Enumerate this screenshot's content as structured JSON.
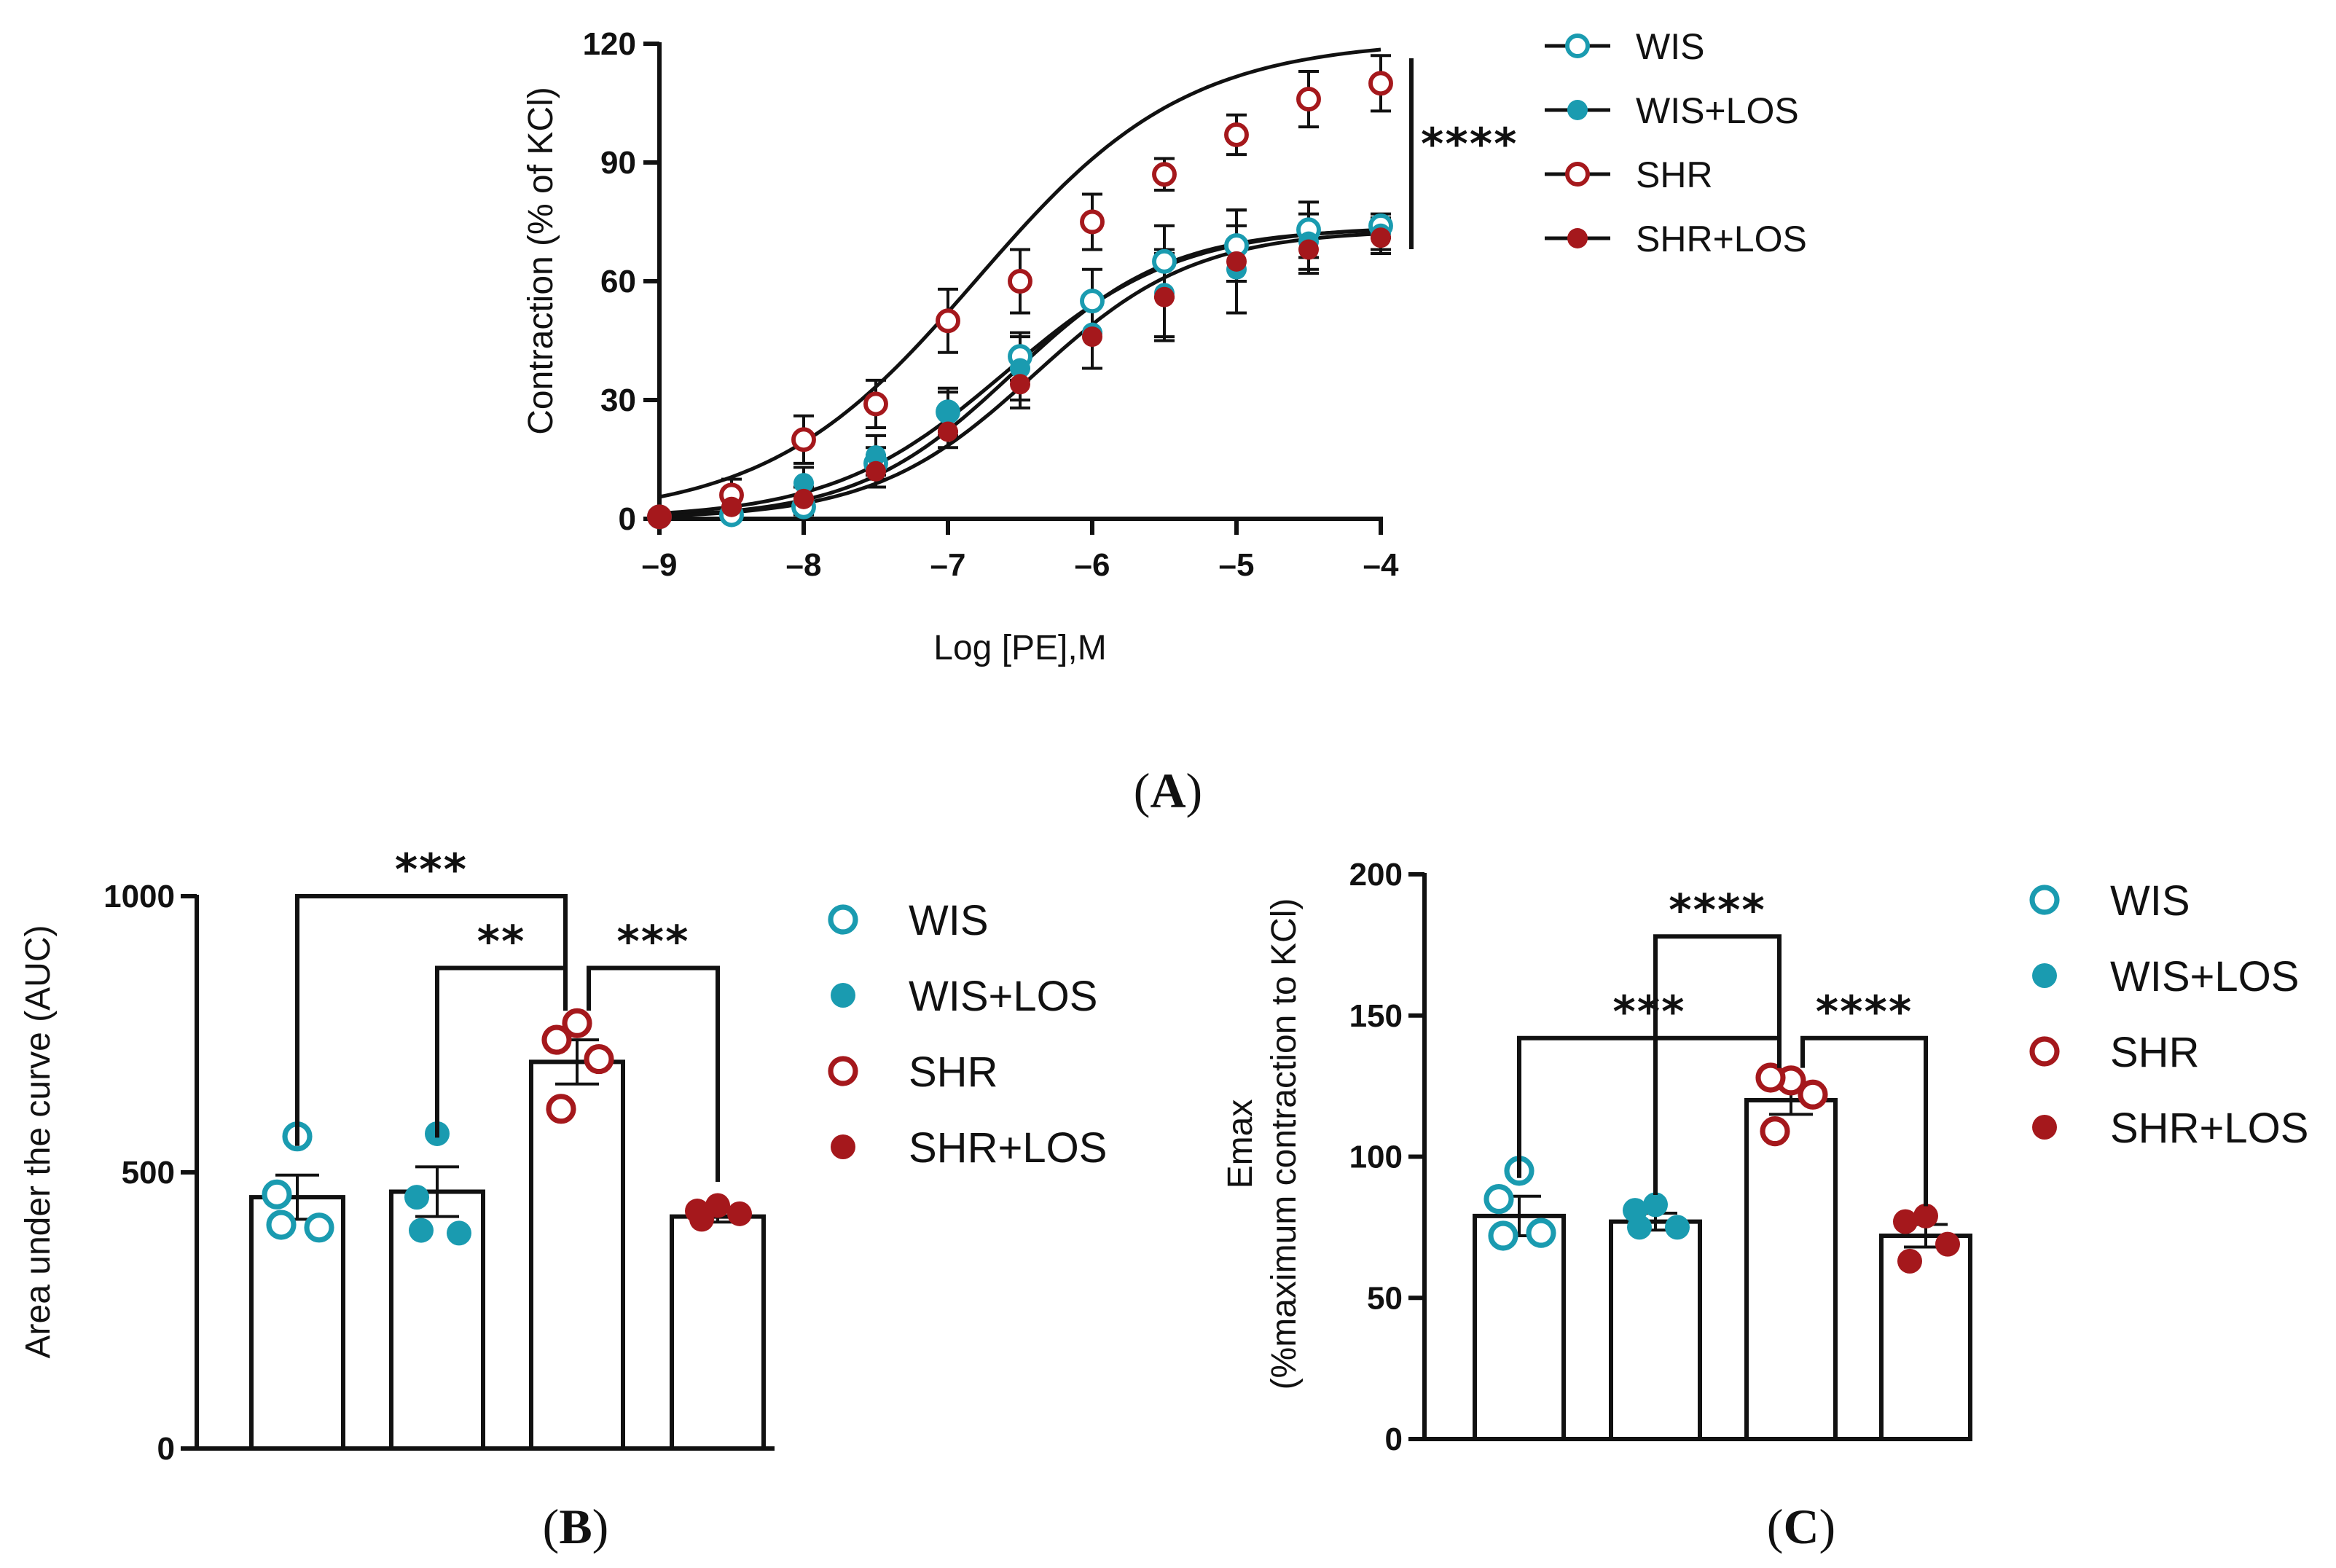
{
  "colors": {
    "wis": "#1a9bb0",
    "shr": "#a5181c",
    "axis": "#111111"
  },
  "panel_labels": {
    "a": "A",
    "b": "B",
    "c": "C"
  },
  "chart_data": [
    {
      "id": "A",
      "type": "line",
      "xlabel": "Log [PE],M",
      "ylabel": "Contraction (% of KCl)",
      "xlim": [
        -9,
        -4
      ],
      "ylim": [
        0,
        120
      ],
      "xticks": [
        -9,
        -8,
        -7,
        -6,
        -5,
        -4
      ],
      "xtick_labels": [
        "–9",
        "–8",
        "–7",
        "–6",
        "–5",
        "–4"
      ],
      "yticks": [
        0,
        30,
        60,
        90,
        120
      ],
      "x": [
        -9,
        -8.5,
        -8,
        -7.5,
        -7,
        -6.5,
        -6,
        -5.5,
        -5,
        -4.5,
        -4
      ],
      "series": [
        {
          "name": "WIS",
          "style": "open",
          "color": "#1a9bb0",
          "values": [
            0.5,
            1,
            3,
            14,
            27,
            41,
            55,
            65,
            69,
            73,
            74
          ],
          "errors": [
            0.5,
            1,
            2,
            4,
            5,
            6,
            8,
            9,
            9,
            7,
            3
          ],
          "fit": {
            "bottom": 0,
            "top": 73.5,
            "logec50": -6.55,
            "hill": 0.8
          }
        },
        {
          "name": "WIS+LOS",
          "style": "filled",
          "color": "#1a9bb0",
          "values": [
            0.5,
            5,
            9,
            16,
            27,
            38,
            47,
            57,
            63,
            70,
            72
          ],
          "errors": [
            0.5,
            2,
            4,
            5,
            6,
            8,
            9,
            11,
            11,
            7,
            4
          ],
          "fit": {
            "bottom": 0,
            "top": 74,
            "logec50": -6.6,
            "hill": 0.72
          }
        },
        {
          "name": "SHR",
          "style": "open",
          "color": "#a5181c",
          "values": [
            0.5,
            6,
            20,
            29,
            50,
            60,
            75,
            87,
            97,
            106,
            110
          ],
          "errors": [
            0.5,
            4,
            6,
            6,
            8,
            8,
            7,
            4,
            5,
            7,
            7
          ],
          "fit": {
            "bottom": 0,
            "top": 121,
            "logec50": -6.8,
            "hill": 0.6
          }
        },
        {
          "name": "SHR+LOS",
          "style": "filled",
          "color": "#a5181c",
          "values": [
            0.5,
            3,
            5,
            12,
            22,
            34,
            46,
            56,
            65,
            68,
            71
          ],
          "errors": [
            0.5,
            2,
            3,
            4,
            4,
            6,
            8,
            11,
            13,
            6,
            4
          ],
          "fit": {
            "bottom": 0,
            "top": 73,
            "logec50": -6.4,
            "hill": 0.78
          }
        }
      ],
      "legend": [
        "WIS",
        "WIS+LOS",
        "SHR",
        "SHR+LOS"
      ],
      "legend_position": "right",
      "annotations": [
        {
          "text": "****",
          "between": "SHR vs others at max"
        }
      ]
    },
    {
      "id": "B",
      "type": "bar",
      "ylabel": "Area under the curve (AUC)",
      "ylim": [
        0,
        1000
      ],
      "yticks": [
        0,
        500,
        1000
      ],
      "categories": [
        "WIS",
        "WIS+LOS",
        "SHR",
        "SHR+LOS"
      ],
      "values": [
        455,
        465,
        700,
        420
      ],
      "errors": [
        40,
        45,
        40,
        10
      ],
      "points": [
        [
          565,
          460,
          400,
          405
        ],
        [
          570,
          455,
          390,
          395
        ],
        [
          770,
          740,
          705,
          615
        ],
        [
          440,
          430,
          425,
          415
        ]
      ],
      "legend": [
        "WIS",
        "WIS+LOS",
        "SHR",
        "SHR+LOS"
      ],
      "legend_position": "right",
      "annotations": [
        {
          "text": "***",
          "from": 0,
          "to": 2,
          "level": 1000
        },
        {
          "text": "**",
          "from": 1,
          "to": 2,
          "level": 870
        },
        {
          "text": "***",
          "from": 2,
          "to": 3,
          "level": 870
        }
      ]
    },
    {
      "id": "C",
      "type": "bar",
      "ylabel_line1": "Emax",
      "ylabel_line2": "(%maximum contraction to KCl)",
      "ylim": [
        0,
        200
      ],
      "yticks": [
        0,
        50,
        100,
        150,
        200
      ],
      "categories": [
        "WIS",
        "WIS+LOS",
        "SHR",
        "SHR+LOS"
      ],
      "values": [
        79,
        77,
        120,
        72
      ],
      "errors": [
        7,
        3,
        5,
        4
      ],
      "points": [
        [
          95,
          85,
          73,
          72
        ],
        [
          83,
          81,
          75,
          75
        ],
        [
          127,
          128,
          122,
          109
        ],
        [
          79,
          77,
          69,
          63
        ]
      ],
      "legend": [
        "WIS",
        "WIS+LOS",
        "SHR",
        "SHR+LOS"
      ],
      "legend_position": "right",
      "annotations": [
        {
          "text": "****",
          "from": 1,
          "to": 2,
          "level": 178
        },
        {
          "text": "***",
          "from": 0,
          "to": 2,
          "level": 142
        },
        {
          "text": "****",
          "from": 2,
          "to": 3,
          "level": 142
        }
      ]
    }
  ]
}
